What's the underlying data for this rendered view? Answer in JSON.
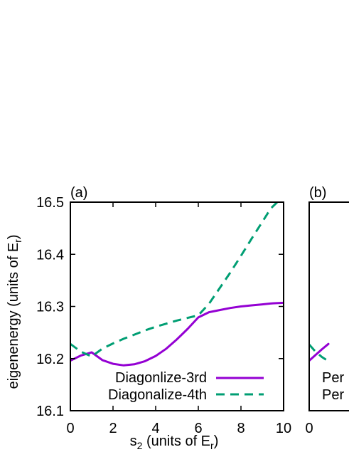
{
  "chart_data": [
    {
      "type": "line",
      "panel_label": "(a)",
      "xlabel": {
        "main": "s",
        "sub": "2",
        "pre_unit": " (units of E",
        "unit_sub": "r",
        "post": ")"
      },
      "ylabel": {
        "main": "eigenenergy (units of E",
        "sub": "r",
        "post": ")"
      },
      "xlim": [
        0,
        10
      ],
      "ylim": [
        16.1,
        16.5
      ],
      "xticks": [
        0,
        2,
        4,
        6,
        8,
        10
      ],
      "xtick_labels": [
        "0",
        "2",
        "4",
        "6",
        "8",
        "10"
      ],
      "yticks": [
        16.1,
        16.2,
        16.3,
        16.4,
        16.5
      ],
      "ytick_labels": [
        "16.1",
        "16.2",
        "16.3",
        "16.4",
        "16.5"
      ],
      "grid": false,
      "legend_position": "bottom-right",
      "series": [
        {
          "name": "Diagonlize-3rd",
          "color": "#9400d3",
          "dash": "solid",
          "x": [
            0,
            0.5,
            1,
            1.5,
            2,
            2.5,
            3,
            3.5,
            4,
            4.5,
            5,
            5.5,
            6,
            6.2,
            6.5,
            7,
            7.5,
            8,
            8.5,
            9,
            9.5,
            10
          ],
          "y": [
            16.196,
            16.206,
            16.212,
            16.197,
            16.19,
            16.187,
            16.189,
            16.195,
            16.205,
            16.219,
            16.237,
            16.257,
            16.279,
            16.283,
            16.289,
            16.293,
            16.297,
            16.3,
            16.302,
            16.304,
            16.306,
            16.307
          ]
        },
        {
          "name": "Diagonalize-4th",
          "color": "#009e73",
          "dash": "dashed",
          "x": [
            0,
            0.5,
            1,
            1.5,
            2,
            2.5,
            3,
            3.5,
            4,
            4.5,
            5,
            5.5,
            6,
            6.5,
            7,
            7.5,
            8,
            8.5,
            9,
            9.4,
            9.7
          ],
          "y": [
            16.228,
            16.213,
            16.204,
            16.219,
            16.229,
            16.238,
            16.246,
            16.254,
            16.261,
            16.267,
            16.273,
            16.278,
            16.283,
            16.305,
            16.335,
            16.365,
            16.397,
            16.43,
            16.462,
            16.488,
            16.5
          ]
        }
      ]
    },
    {
      "type": "line",
      "panel_label": "(b)",
      "xlim": [
        0,
        10
      ],
      "ylim": [
        16.1,
        16.5
      ],
      "xticks": [
        0
      ],
      "xtick_labels": [
        "0"
      ],
      "grid": false,
      "legend_position": "bottom-left",
      "legend_visible_text": [
        "Per",
        "Per"
      ],
      "series": [
        {
          "color": "#9400d3",
          "dash": "solid",
          "x": [
            0,
            0.3,
            0.6,
            0.9
          ],
          "y": [
            16.196,
            16.207,
            16.218,
            16.228
          ]
        },
        {
          "color": "#009e73",
          "dash": "dashed",
          "x": [
            0,
            0.3,
            0.6,
            0.9
          ],
          "y": [
            16.227,
            16.213,
            16.203,
            16.195
          ]
        }
      ]
    }
  ]
}
